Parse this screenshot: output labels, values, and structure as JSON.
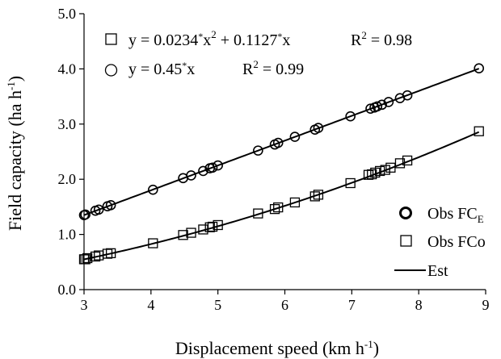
{
  "chart_data": {
    "type": "scatter",
    "xlabel_main": "Displacement speed (km h",
    "xlabel_sup": "-1",
    "xlabel_tail": ")",
    "ylabel_main": "Field capacity (ha h",
    "ylabel_sup": "-1",
    "ylabel_tail": ")",
    "xlim": [
      3,
      9
    ],
    "ylim": [
      0,
      5
    ],
    "x_ticks": [
      "3",
      "4",
      "5",
      "6",
      "7",
      "8",
      "9"
    ],
    "y_ticks": [
      "0.0",
      "1.0",
      "2.0",
      "3.0",
      "4.0",
      "5.0"
    ],
    "grid": false,
    "legend_position": "lower-right",
    "equations": [
      {
        "marker": "square",
        "a": "y = 0.0234",
        "b": "x",
        "c": "2",
        "d": " + 0.1127",
        "e": "x",
        "r2_label": "R",
        "r2_exp": "2",
        "r2_value": " = 0.98"
      },
      {
        "marker": "circle",
        "a": "y = 0.45",
        "b": "x",
        "r2_label": "R",
        "r2_exp": "2",
        "r2_value": " = 0.99"
      }
    ],
    "legend": [
      {
        "marker": "circle",
        "name": "Obs FC",
        "sub": "E"
      },
      {
        "marker": "square",
        "name": "Obs FCo",
        "sub": ""
      },
      {
        "marker": "line",
        "name": "Est",
        "sub": ""
      }
    ],
    "series": [
      {
        "marker": "circle",
        "x": [
          3.0,
          3.02,
          3.17,
          3.22,
          3.35,
          3.4,
          4.03,
          4.48,
          4.6,
          4.78,
          4.88,
          4.92,
          5.0,
          5.6,
          5.85,
          5.9,
          6.15,
          6.45,
          6.5,
          6.98,
          7.28,
          7.34,
          7.38,
          7.45,
          7.55,
          7.72,
          7.83,
          8.9
        ],
        "y": [
          1.35,
          1.36,
          1.43,
          1.45,
          1.51,
          1.53,
          1.81,
          2.02,
          2.07,
          2.15,
          2.2,
          2.21,
          2.25,
          2.52,
          2.63,
          2.66,
          2.77,
          2.9,
          2.93,
          3.14,
          3.28,
          3.3,
          3.32,
          3.35,
          3.4,
          3.47,
          3.52,
          4.01
        ]
      },
      {
        "marker": "square",
        "x": [
          3.0,
          3.02,
          3.05,
          3.17,
          3.22,
          3.35,
          3.4,
          4.03,
          4.48,
          4.6,
          4.78,
          4.88,
          4.92,
          5.0,
          5.6,
          5.85,
          5.9,
          6.15,
          6.45,
          6.5,
          6.98,
          7.25,
          7.3,
          7.35,
          7.42,
          7.5,
          7.58,
          7.72,
          7.83,
          8.9
        ],
        "y": [
          0.55,
          0.55,
          0.57,
          0.6,
          0.62,
          0.65,
          0.66,
          0.84,
          0.99,
          1.03,
          1.09,
          1.13,
          1.14,
          1.17,
          1.38,
          1.46,
          1.49,
          1.58,
          1.69,
          1.72,
          1.93,
          2.08,
          2.09,
          2.12,
          2.15,
          2.17,
          2.21,
          2.29,
          2.34,
          2.87
        ]
      }
    ],
    "fits": [
      {
        "a": 0.0234,
        "b": 0.1127
      },
      {
        "a": 0.0,
        "b": 0.45
      }
    ]
  }
}
